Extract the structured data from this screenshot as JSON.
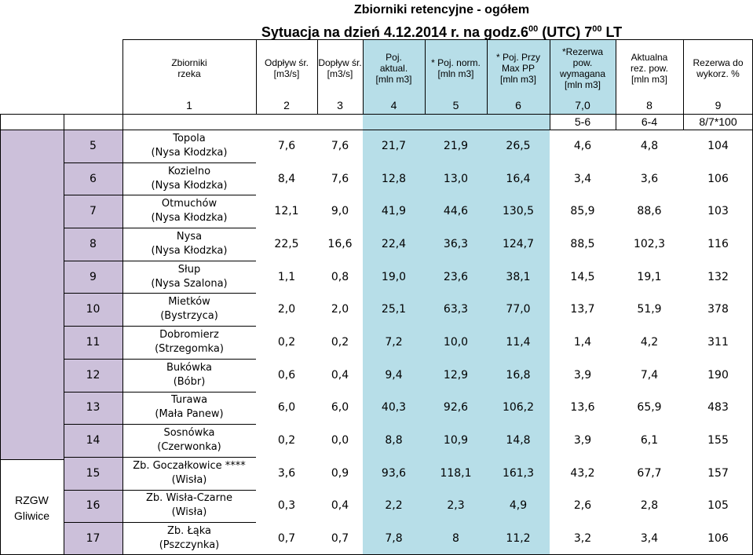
{
  "header": {
    "title": "Zbiorniki retencyjne - ogółem",
    "subtitle_main": "Sytuacja na dzień 4.12.2014 r. na godz.6",
    "subtitle_sup1": "00",
    "subtitle_mid": " (UTC) 7",
    "subtitle_sup2": "00",
    "subtitle_end": " LT"
  },
  "columns": {
    "zbiorniki": [
      "Zbiorniki",
      "rzeka"
    ],
    "odplyw": [
      "Odpływ śr.",
      "[m3/s]"
    ],
    "doplyw": [
      "Dopływ śr.",
      "[m3/s]"
    ],
    "poj_aktual": [
      "Poj.",
      "aktual.",
      "[mln m3]"
    ],
    "poj_norm": [
      "* Poj. norm.",
      "[mln m3]"
    ],
    "poj_przy": [
      "* Poj. Przy",
      "Max PP",
      "[mln m3]"
    ],
    "rezerwa_wym": [
      "*Rezerwa",
      "pow.",
      "wymagana",
      "[mln m3]"
    ],
    "aktualna_rez": [
      "Aktualna",
      "rez. pow.",
      "[mln m3]"
    ],
    "rezerwa_wykorz": [
      "Rezerwa do",
      "wykorz. %"
    ]
  },
  "col_numbers": [
    "1",
    "2",
    "3",
    "4",
    "5",
    "6",
    "7,0",
    "8",
    "9"
  ],
  "formulas": [
    "5-6",
    "6-4",
    "8/7*100"
  ],
  "region_label": [
    "RZGW",
    "Gliwice"
  ],
  "rows": [
    {
      "lp": "5",
      "name": "Topola",
      "river": "(Nysa Kłodzka)",
      "v": [
        "7,6",
        "7,6",
        "21,7",
        "21,9",
        "26,5",
        "4,6",
        "4,8",
        "104"
      ]
    },
    {
      "lp": "6",
      "name": "Kozielno",
      "river": "(Nysa Kłodzka)",
      "v": [
        "8,4",
        "7,6",
        "12,8",
        "13,0",
        "16,4",
        "3,4",
        "3,6",
        "106"
      ]
    },
    {
      "lp": "7",
      "name": "Otmuchów",
      "river": "(Nysa Kłodzka)",
      "v": [
        "12,1",
        "9,0",
        "41,9",
        "44,6",
        "130,5",
        "85,9",
        "88,6",
        "103"
      ]
    },
    {
      "lp": "8",
      "name": "Nysa",
      "river": "(Nysa Kłodzka)",
      "v": [
        "22,5",
        "16,6",
        "22,4",
        "36,3",
        "124,7",
        "88,5",
        "102,3",
        "116"
      ]
    },
    {
      "lp": "9",
      "name": "Słup",
      "river": "(Nysa Szalona)",
      "v": [
        "1,1",
        "0,8",
        "19,0",
        "23,6",
        "38,1",
        "14,5",
        "19,1",
        "132"
      ]
    },
    {
      "lp": "10",
      "name": "Mietków",
      "river": "(Bystrzyca)",
      "v": [
        "2,0",
        "2,0",
        "25,1",
        "63,3",
        "77,0",
        "13,7",
        "51,9",
        "378"
      ]
    },
    {
      "lp": "11",
      "name": "Dobromierz",
      "river": "(Strzegomka)",
      "v": [
        "0,2",
        "0,2",
        "7,2",
        "10,0",
        "11,4",
        "1,4",
        "4,2",
        "311"
      ]
    },
    {
      "lp": "12",
      "name": "Bukówka",
      "river": "(Bóbr)",
      "v": [
        "0,6",
        "0,4",
        "9,4",
        "12,9",
        "16,8",
        "3,9",
        "7,4",
        "190"
      ]
    },
    {
      "lp": "13",
      "name": "Turawa",
      "river": "(Mała Panew)",
      "v": [
        "6,0",
        "6,0",
        "40,3",
        "92,6",
        "106,2",
        "13,6",
        "65,9",
        "483"
      ]
    },
    {
      "lp": "14",
      "name": "Sosnówka",
      "river": "(Czerwonka)",
      "v": [
        "0,2",
        "0,0",
        "8,8",
        "10,9",
        "14,8",
        "3,9",
        "6,1",
        "155"
      ]
    },
    {
      "lp": "15",
      "name": "Zb. Goczałkowice ****",
      "river": "(Wisła)",
      "v": [
        "3,6",
        "0,9",
        "93,6",
        "118,1",
        "161,3",
        "43,2",
        "67,7",
        "157"
      ]
    },
    {
      "lp": "16",
      "name": "Zb. Wisła-Czarne",
      "river": "(Wisła)",
      "v": [
        "0,3",
        "0,4",
        "2,2",
        "2,3",
        "4,9",
        "2,6",
        "2,8",
        "105"
      ]
    },
    {
      "lp": "17",
      "name": "Zb. Łąka",
      "river": "(Pszczynka)",
      "v": [
        "0,7",
        "0,7",
        "7,8",
        "8",
        "11,2",
        "3,2",
        "3,4",
        "106"
      ]
    }
  ],
  "colors": {
    "light_blue": "#b7dee8",
    "purple": "#ccc0da"
  }
}
